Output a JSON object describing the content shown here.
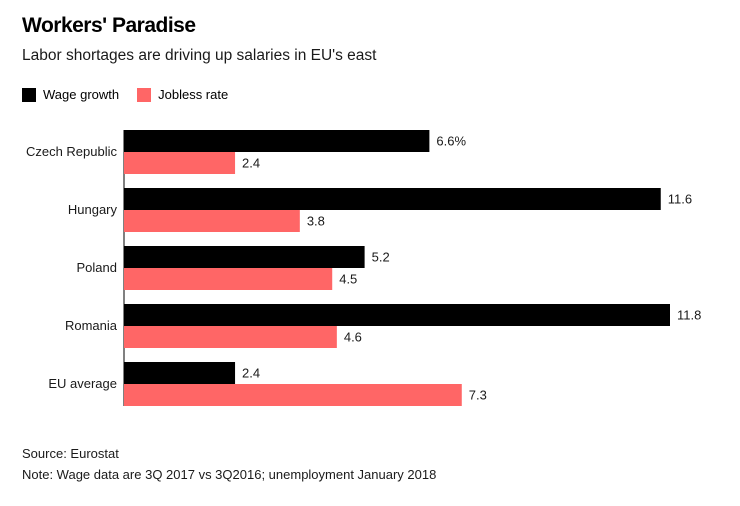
{
  "colors": {
    "wage": "#000000",
    "jobless": "#ff6666"
  },
  "chart_data": {
    "type": "bar",
    "orientation": "horizontal",
    "title": "Workers' Paradise",
    "subtitle": "Labor shortages are driving up salaries in EU's east",
    "categories": [
      "Czech Republic",
      "Hungary",
      "Poland",
      "Romania",
      "EU average"
    ],
    "series": [
      {
        "name": "Wage growth",
        "values": [
          6.6,
          11.6,
          5.2,
          11.8,
          2.4
        ],
        "labels": [
          "6.6%",
          "11.6",
          "5.2",
          "11.8",
          "2.4"
        ]
      },
      {
        "name": "Jobless rate",
        "values": [
          2.4,
          3.8,
          4.5,
          4.6,
          7.3
        ],
        "labels": [
          "2.4",
          "3.8",
          "4.5",
          "4.6",
          "7.3"
        ]
      }
    ],
    "xlim": [
      0,
      12
    ],
    "legend": "top-left",
    "grid": false
  },
  "footer": {
    "source": "Source: Eurostat",
    "note": "Note: Wage data are 3Q 2017 vs 3Q2016; unemployment January 2018"
  }
}
